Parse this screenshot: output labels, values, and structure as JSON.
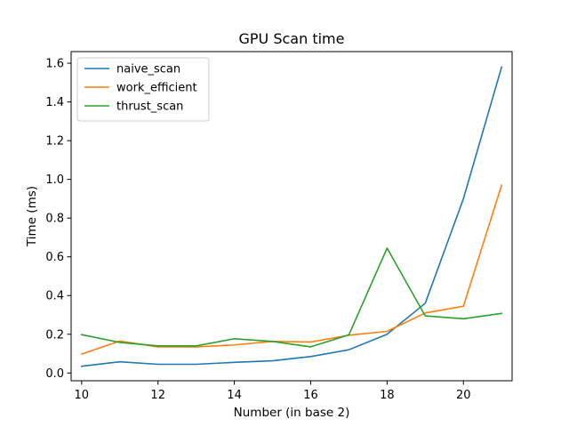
{
  "chart_data": {
    "type": "line",
    "title": "GPU Scan time",
    "xlabel": "Number (in base 2)",
    "ylabel": "Time (ms)",
    "xlim": [
      9.725,
      21.275
    ],
    "ylim": [
      -0.04,
      1.66
    ],
    "xticks": [
      10,
      12,
      14,
      16,
      18,
      20
    ],
    "yticks": [
      0.0,
      0.2,
      0.4,
      0.6,
      0.8,
      1.0,
      1.2,
      1.4,
      1.6
    ],
    "ytick_labels": [
      "0.0",
      "0.2",
      "0.4",
      "0.6",
      "0.8",
      "1.0",
      "1.2",
      "1.4",
      "1.6"
    ],
    "grid": false,
    "legend_position": "top-left",
    "x": [
      10,
      11,
      12,
      13,
      14,
      15,
      16,
      17,
      18,
      19,
      20,
      21
    ],
    "series": [
      {
        "name": "naive_scan",
        "color": "#1f77b4",
        "values": [
          0.035,
          0.058,
          0.045,
          0.045,
          0.055,
          0.063,
          0.085,
          0.12,
          0.2,
          0.36,
          0.9,
          1.58
        ]
      },
      {
        "name": "work_efficient",
        "color": "#ff7f0e",
        "values": [
          0.098,
          0.165,
          0.135,
          0.135,
          0.145,
          0.163,
          0.16,
          0.195,
          0.215,
          0.31,
          0.345,
          0.97
        ]
      },
      {
        "name": "thrust_scan",
        "color": "#2ca02c",
        "values": [
          0.198,
          0.158,
          0.14,
          0.14,
          0.177,
          0.163,
          0.135,
          0.197,
          0.645,
          0.295,
          0.28,
          0.308
        ]
      }
    ]
  }
}
